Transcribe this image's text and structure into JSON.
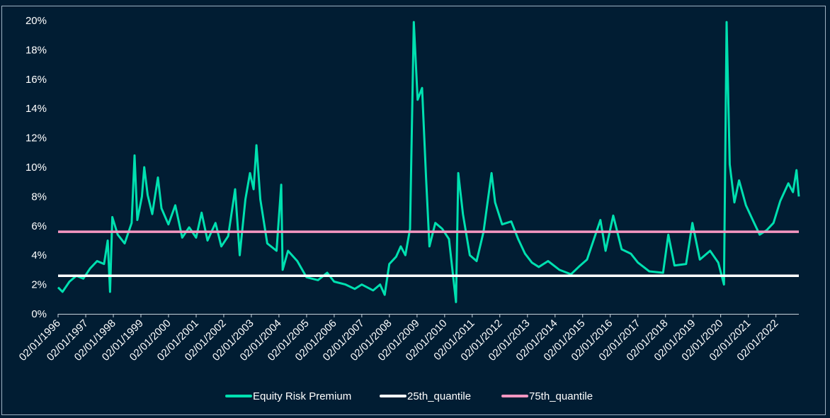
{
  "chart_data": {
    "type": "line",
    "x_start": "1996-01-02",
    "x_end": "2022-11-01",
    "ylim": [
      0,
      20
    ],
    "y_ticks": [
      "0%",
      "2%",
      "4%",
      "6%",
      "8%",
      "10%",
      "12%",
      "14%",
      "16%",
      "18%",
      "20%"
    ],
    "x_ticks": [
      "02/01/1996",
      "02/01/1997",
      "02/01/1998",
      "02/01/1999",
      "02/01/2000",
      "02/01/2001",
      "02/01/2002",
      "02/01/2003",
      "02/01/2004",
      "02/01/2005",
      "02/01/2006",
      "02/01/2007",
      "02/01/2008",
      "02/01/2009",
      "02/01/2010",
      "02/01/2011",
      "02/01/2012",
      "02/01/2013",
      "02/01/2014",
      "02/01/2015",
      "02/01/2016",
      "02/01/2017",
      "02/01/2018",
      "02/01/2019",
      "02/01/2020",
      "02/01/2021",
      "02/01/2022"
    ],
    "grid": false,
    "legend_position": "bottom",
    "series": [
      {
        "name": "Equity Risk Premium",
        "color": "#00e0b0",
        "points": [
          [
            "1996-01-02",
            1.8
          ],
          [
            "1996-03-01",
            1.5
          ],
          [
            "1996-06-01",
            2.2
          ],
          [
            "1996-09-01",
            2.6
          ],
          [
            "1996-12-01",
            2.4
          ],
          [
            "1997-03-01",
            3.1
          ],
          [
            "1997-06-01",
            3.6
          ],
          [
            "1997-09-01",
            3.4
          ],
          [
            "1997-10-20",
            5.0
          ],
          [
            "1997-11-20",
            1.5
          ],
          [
            "1997-12-20",
            6.6
          ],
          [
            "1998-03-01",
            5.4
          ],
          [
            "1998-06-01",
            4.8
          ],
          [
            "1998-09-01",
            6.2
          ],
          [
            "1998-10-10",
            10.8
          ],
          [
            "1998-11-15",
            6.4
          ],
          [
            "1999-01-15",
            8.0
          ],
          [
            "1999-02-15",
            10.0
          ],
          [
            "1999-04-01",
            8.1
          ],
          [
            "1999-06-01",
            6.8
          ],
          [
            "1999-08-15",
            9.3
          ],
          [
            "1999-10-01",
            7.2
          ],
          [
            "2000-01-01",
            6.1
          ],
          [
            "2000-04-01",
            7.4
          ],
          [
            "2000-07-01",
            5.2
          ],
          [
            "2000-10-01",
            5.9
          ],
          [
            "2001-01-01",
            5.2
          ],
          [
            "2001-03-15",
            6.9
          ],
          [
            "2001-06-01",
            5.0
          ],
          [
            "2001-09-15",
            6.2
          ],
          [
            "2001-12-01",
            4.6
          ],
          [
            "2002-03-01",
            5.3
          ],
          [
            "2002-06-01",
            8.5
          ],
          [
            "2002-08-01",
            4.0
          ],
          [
            "2002-10-15",
            7.8
          ],
          [
            "2002-12-15",
            9.6
          ],
          [
            "2003-02-01",
            8.5
          ],
          [
            "2003-03-10",
            11.5
          ],
          [
            "2003-05-01",
            7.8
          ],
          [
            "2003-08-01",
            4.8
          ],
          [
            "2003-12-01",
            4.3
          ],
          [
            "2004-02-01",
            8.8
          ],
          [
            "2004-02-20",
            3.0
          ],
          [
            "2004-05-01",
            4.3
          ],
          [
            "2004-09-01",
            3.6
          ],
          [
            "2005-01-01",
            2.5
          ],
          [
            "2005-06-01",
            2.3
          ],
          [
            "2005-10-01",
            2.8
          ],
          [
            "2006-01-01",
            2.2
          ],
          [
            "2006-06-01",
            2.0
          ],
          [
            "2006-10-01",
            1.7
          ],
          [
            "2007-01-01",
            2.0
          ],
          [
            "2007-06-01",
            1.6
          ],
          [
            "2007-09-01",
            2.0
          ],
          [
            "2007-11-01",
            1.3
          ],
          [
            "2008-01-01",
            3.4
          ],
          [
            "2008-04-01",
            3.9
          ],
          [
            "2008-06-01",
            4.6
          ],
          [
            "2008-08-01",
            4.0
          ],
          [
            "2008-10-01",
            5.8
          ],
          [
            "2008-11-20",
            19.9
          ],
          [
            "2009-01-10",
            14.6
          ],
          [
            "2009-03-10",
            15.4
          ],
          [
            "2009-05-01",
            9.3
          ],
          [
            "2009-06-15",
            4.6
          ],
          [
            "2009-09-01",
            6.2
          ],
          [
            "2009-12-01",
            5.8
          ],
          [
            "2010-03-01",
            5.1
          ],
          [
            "2010-06-01",
            0.8
          ],
          [
            "2010-07-01",
            9.6
          ],
          [
            "2010-09-01",
            6.8
          ],
          [
            "2010-12-01",
            4.0
          ],
          [
            "2011-03-01",
            3.6
          ],
          [
            "2011-06-01",
            5.6
          ],
          [
            "2011-09-15",
            9.6
          ],
          [
            "2011-11-01",
            7.6
          ],
          [
            "2012-02-01",
            6.1
          ],
          [
            "2012-06-01",
            6.3
          ],
          [
            "2012-09-01",
            5.1
          ],
          [
            "2012-12-01",
            4.1
          ],
          [
            "2013-03-01",
            3.5
          ],
          [
            "2013-06-01",
            3.2
          ],
          [
            "2013-10-01",
            3.6
          ],
          [
            "2014-03-01",
            3.0
          ],
          [
            "2014-08-01",
            2.7
          ],
          [
            "2014-12-01",
            3.3
          ],
          [
            "2015-03-01",
            3.7
          ],
          [
            "2015-08-25",
            6.4
          ],
          [
            "2015-11-01",
            4.3
          ],
          [
            "2016-02-10",
            6.7
          ],
          [
            "2016-06-01",
            4.4
          ],
          [
            "2016-10-01",
            4.1
          ],
          [
            "2017-01-01",
            3.5
          ],
          [
            "2017-06-01",
            2.9
          ],
          [
            "2017-12-01",
            2.8
          ],
          [
            "2018-02-08",
            5.4
          ],
          [
            "2018-05-01",
            3.3
          ],
          [
            "2018-10-01",
            3.4
          ],
          [
            "2018-12-24",
            6.2
          ],
          [
            "2019-04-01",
            3.7
          ],
          [
            "2019-08-15",
            4.3
          ],
          [
            "2019-12-01",
            3.5
          ],
          [
            "2020-02-15",
            2.0
          ],
          [
            "2020-03-20",
            19.9
          ],
          [
            "2020-05-01",
            10.2
          ],
          [
            "2020-07-01",
            7.6
          ],
          [
            "2020-09-01",
            9.1
          ],
          [
            "2020-12-01",
            7.4
          ],
          [
            "2021-03-01",
            6.4
          ],
          [
            "2021-06-01",
            5.4
          ],
          [
            "2021-09-01",
            5.7
          ],
          [
            "2021-12-01",
            6.2
          ],
          [
            "2022-03-01",
            7.7
          ],
          [
            "2022-06-15",
            8.9
          ],
          [
            "2022-08-15",
            8.3
          ],
          [
            "2022-10-01",
            9.8
          ],
          [
            "2022-11-01",
            8.0
          ]
        ]
      },
      {
        "name": "25th_quantile",
        "color": "#ffffff",
        "points": [
          [
            "1996-01-02",
            2.6
          ],
          [
            "2022-11-01",
            2.6
          ]
        ]
      },
      {
        "name": "75th_quantile",
        "color": "#f596c1",
        "points": [
          [
            "1996-01-02",
            5.6
          ],
          [
            "2022-11-01",
            5.6
          ]
        ]
      }
    ]
  }
}
